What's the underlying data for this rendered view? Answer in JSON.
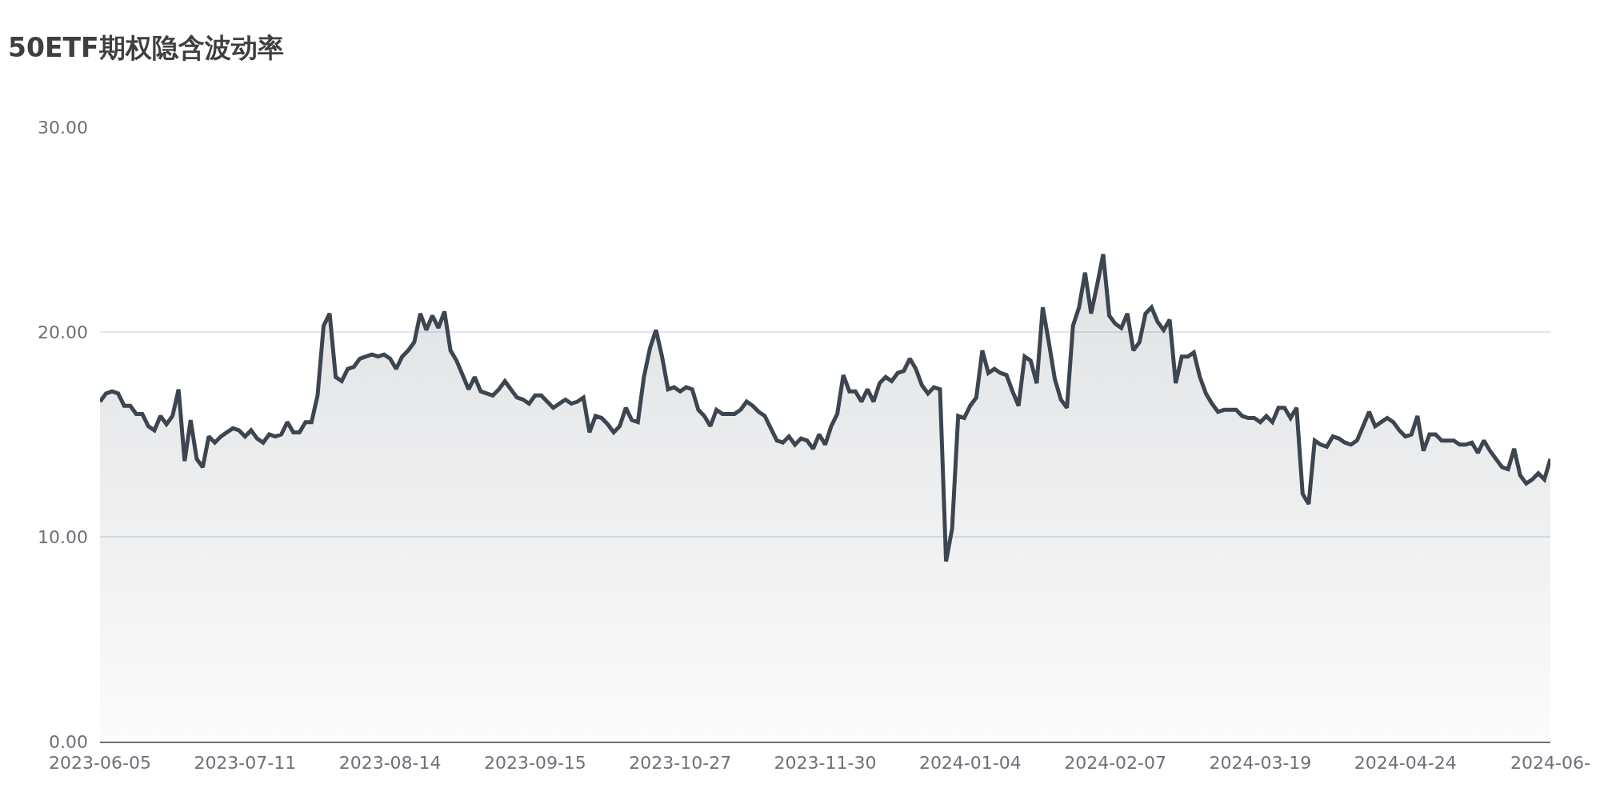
{
  "chart_data": {
    "type": "area",
    "title": "50ETF期权隐含波动率",
    "categories": [
      "2023-06-05",
      null,
      null,
      null,
      null,
      null,
      null,
      null,
      null,
      null,
      null,
      null,
      null,
      null,
      null,
      null,
      null,
      null,
      null,
      null,
      null,
      null,
      null,
      null,
      "2023-07-11",
      null,
      null,
      null,
      null,
      null,
      null,
      null,
      null,
      null,
      null,
      null,
      null,
      null,
      null,
      null,
      null,
      null,
      null,
      null,
      null,
      null,
      null,
      null,
      "2023-08-14",
      null,
      null,
      null,
      null,
      null,
      null,
      null,
      null,
      null,
      null,
      null,
      null,
      null,
      null,
      null,
      null,
      null,
      null,
      null,
      null,
      null,
      null,
      null,
      "2023-09-15",
      null,
      null,
      null,
      null,
      null,
      null,
      null,
      null,
      null,
      null,
      null,
      null,
      null,
      null,
      null,
      null,
      null,
      null,
      null,
      null,
      null,
      null,
      null,
      "2023-10-27",
      null,
      null,
      null,
      null,
      null,
      null,
      null,
      null,
      null,
      null,
      null,
      null,
      null,
      null,
      null,
      null,
      null,
      null,
      null,
      null,
      null,
      null,
      null,
      "2023-11-30",
      null,
      null,
      null,
      null,
      null,
      null,
      null,
      null,
      null,
      null,
      null,
      null,
      null,
      null,
      null,
      null,
      null,
      null,
      null,
      null,
      null,
      null,
      null,
      "2024-01-04",
      null,
      null,
      null,
      null,
      null,
      null,
      null,
      null,
      null,
      null,
      null,
      null,
      null,
      null,
      null,
      null,
      null,
      null,
      null,
      null,
      null,
      null,
      null,
      "2024-02-07",
      null,
      null,
      null,
      null,
      null,
      null,
      null,
      null,
      null,
      null,
      null,
      null,
      null,
      null,
      null,
      null,
      null,
      null,
      null,
      null,
      null,
      null,
      null,
      "2024-03-19",
      null,
      null,
      null,
      null,
      null,
      null,
      null,
      null,
      null,
      null,
      null,
      null,
      null,
      null,
      null,
      null,
      null,
      null,
      null,
      null,
      null,
      null,
      null,
      "2024-04-24",
      null,
      null,
      null,
      null,
      null,
      null,
      null,
      null,
      null,
      null,
      null,
      null,
      null,
      null,
      null,
      null,
      null,
      null,
      null,
      null,
      null,
      null,
      null,
      "2024-06-"
    ],
    "series": [
      {
        "color": "#3d4650",
        "values": [
          16.6,
          17.0,
          17.1,
          17.0,
          16.4,
          16.4,
          16.0,
          16.0,
          15.4,
          15.2,
          15.9,
          15.5,
          15.9,
          17.2,
          13.7,
          15.7,
          13.8,
          13.4,
          14.9,
          14.6,
          14.9,
          15.1,
          15.3,
          15.2,
          14.9,
          15.2,
          14.8,
          14.6,
          15.0,
          14.9,
          15.0,
          15.6,
          15.1,
          15.1,
          15.6,
          15.6,
          16.9,
          20.3,
          20.9,
          17.8,
          17.6,
          18.2,
          18.3,
          18.7,
          18.8,
          18.9,
          18.8,
          18.9,
          18.7,
          18.2,
          18.8,
          19.1,
          19.5,
          20.9,
          20.1,
          20.8,
          20.2,
          21.0,
          19.1,
          18.6,
          17.9,
          17.2,
          17.8,
          17.1,
          17.0,
          16.9,
          17.2,
          17.6,
          17.2,
          16.8,
          16.7,
          16.5,
          16.9,
          16.9,
          16.6,
          16.3,
          16.5,
          16.7,
          16.5,
          16.6,
          16.8,
          15.1,
          15.9,
          15.8,
          15.5,
          15.1,
          15.4,
          16.3,
          15.7,
          15.6,
          17.8,
          19.2,
          20.1,
          18.8,
          17.2,
          17.3,
          17.1,
          17.3,
          17.2,
          16.2,
          15.9,
          15.4,
          16.2,
          16.0,
          16.0,
          16.0,
          16.2,
          16.6,
          16.4,
          16.1,
          15.9,
          15.3,
          14.7,
          14.6,
          14.9,
          14.5,
          14.8,
          14.7,
          14.3,
          15.0,
          14.5,
          15.4,
          16.0,
          17.9,
          17.1,
          17.1,
          16.6,
          17.2,
          16.6,
          17.5,
          17.8,
          17.6,
          18.0,
          18.1,
          18.7,
          18.2,
          17.4,
          17.0,
          17.3,
          17.2,
          8.8,
          10.4,
          15.9,
          15.8,
          16.4,
          16.8,
          19.1,
          18.0,
          18.2,
          18.0,
          17.9,
          17.1,
          16.4,
          18.8,
          18.6,
          17.5,
          21.2,
          19.5,
          17.7,
          16.7,
          16.3,
          20.3,
          21.2,
          22.9,
          20.9,
          22.3,
          23.8,
          20.8,
          20.4,
          20.2,
          20.9,
          19.1,
          19.5,
          20.9,
          21.2,
          20.5,
          20.1,
          20.6,
          17.5,
          18.8,
          18.8,
          19.0,
          17.8,
          17.0,
          16.5,
          16.1,
          16.2,
          16.2,
          16.2,
          15.9,
          15.8,
          15.8,
          15.6,
          15.9,
          15.6,
          16.3,
          16.3,
          15.8,
          16.3,
          12.1,
          11.6,
          14.7,
          14.5,
          14.4,
          14.9,
          14.8,
          14.6,
          14.5,
          14.7,
          15.4,
          16.1,
          15.4,
          15.6,
          15.8,
          15.6,
          15.2,
          14.9,
          15.0,
          15.9,
          14.2,
          15.0,
          15.0,
          14.7,
          14.7,
          14.7,
          14.5,
          14.5,
          14.6,
          14.1,
          14.7,
          14.2,
          13.8,
          13.4,
          13.3,
          14.3,
          13.0,
          12.6,
          12.8,
          13.1,
          12.8,
          13.8
        ]
      }
    ],
    "ylim": [
      0,
      30
    ],
    "yticks": [
      {
        "value": 0,
        "label": "0.00"
      },
      {
        "value": 10,
        "label": "10.00"
      },
      {
        "value": 20,
        "label": "20.00"
      },
      {
        "value": 30,
        "label": "30.00"
      }
    ],
    "grid": "y",
    "marker": "none",
    "line_style": "solid"
  }
}
